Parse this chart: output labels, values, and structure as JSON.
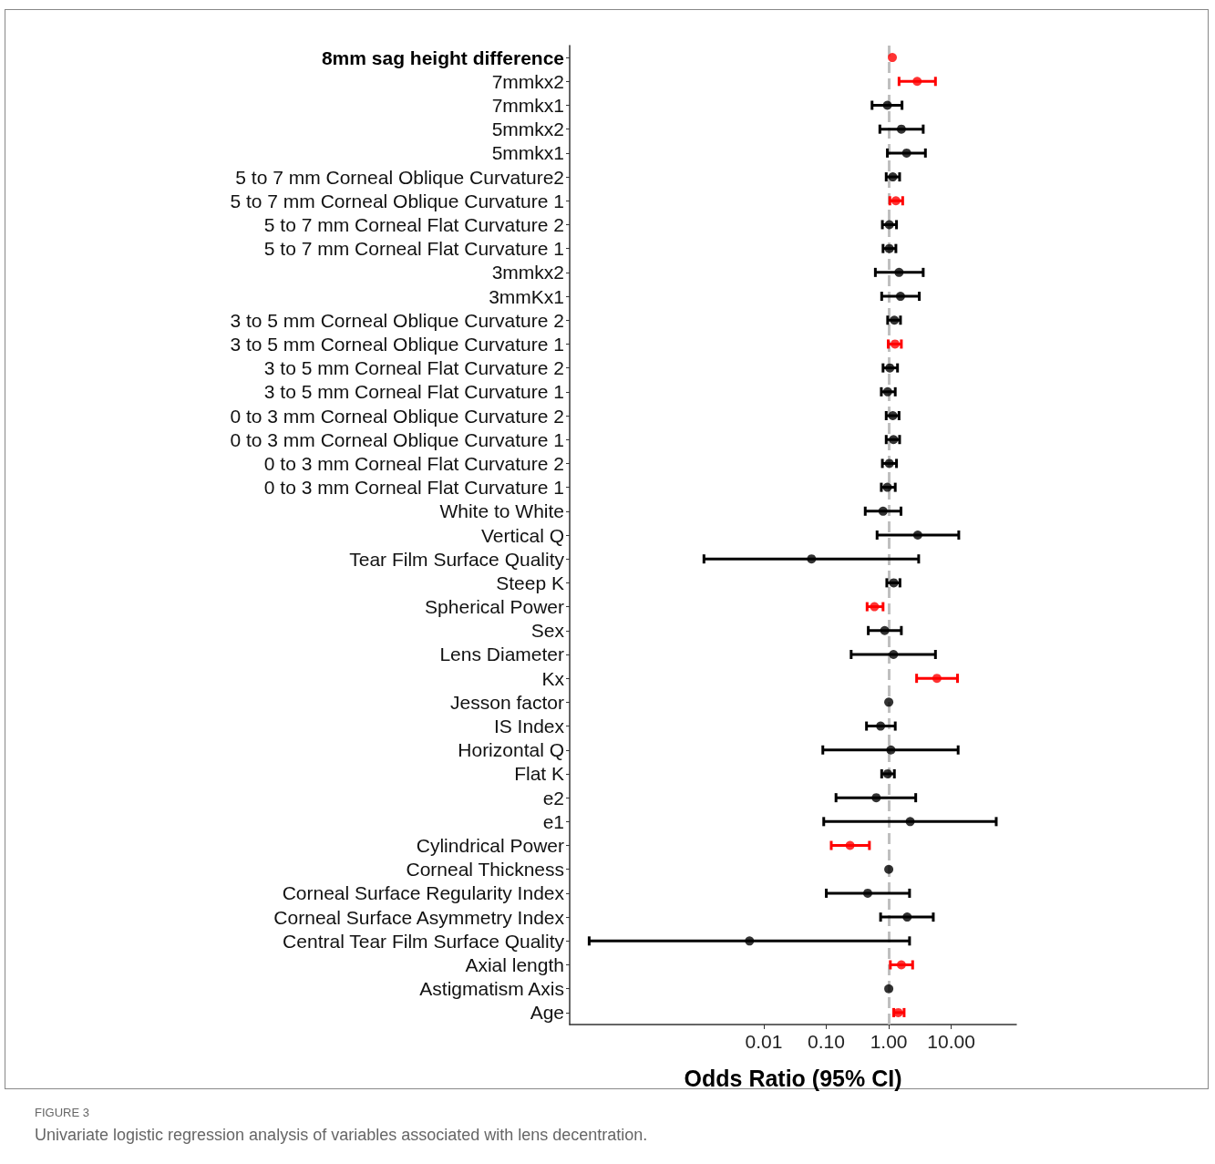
{
  "chart_data": {
    "type": "scatter",
    "orientation": "horizontal",
    "xlabel": "Odds Ratio (95% CI)",
    "categories": [
      "8mm sag height difference",
      "7mmkx2",
      "7mmkx1",
      "5mmkx2",
      "5mmkx1",
      "5 to 7 mm Corneal Oblique Curvature2",
      "5 to 7 mm Corneal Oblique Curvature 1",
      "5 to 7 mm Corneal Flat Curvature 2",
      "5 to 7 mm Corneal Flat Curvature 1",
      "3mmkx2",
      "3mmKx1",
      "3 to 5 mm Corneal Oblique Curvature 2",
      "3 to 5 mm Corneal Oblique Curvature 1",
      "3 to 5 mm Corneal Flat Curvature 2",
      "3 to 5 mm Corneal Flat Curvature 1",
      "0 to 3 mm Corneal Oblique Curvature 2",
      "0 to 3 mm Corneal Oblique Curvature 1",
      "0 to 3 mm Corneal Flat Curvature 2",
      "0 to 3 mm Corneal Flat Curvature 1",
      "White to White",
      "Vertical Q",
      "Tear Film Surface Quality",
      "Steep K",
      "Spherical Power",
      "Sex",
      "Lens Diameter",
      "Kx",
      "Jesson factor",
      "IS Index",
      "Horizontal Q",
      "Flat K",
      "e2",
      "e1",
      "Cylindrical Power",
      "Corneal Thickness",
      "Corneal Surface Regularity Index",
      "Corneal Surface Asymmetry Index",
      "Central Tear Film Surface Quality",
      "Axial length",
      "Astigmatism Axis",
      "Age"
    ],
    "values": [
      1.14,
      2.85,
      0.95,
      1.59,
      1.93,
      1.16,
      1.3,
      1.02,
      1.02,
      1.46,
      1.54,
      1.23,
      1.26,
      1.04,
      0.96,
      1.16,
      1.19,
      1.02,
      0.95,
      0.81,
      2.91,
      0.058,
      1.2,
      0.59,
      0.86,
      1.19,
      5.9,
      1.0,
      0.74,
      1.08,
      0.96,
      0.63,
      2.2,
      0.24,
      1.0,
      0.46,
      1.97,
      0.0059,
      1.59,
      1.0,
      1.42
    ],
    "errors": [
      null,
      [
        1.46,
        5.59
      ],
      [
        0.54,
        1.63
      ],
      [
        0.72,
        3.56
      ],
      [
        0.95,
        3.86
      ],
      [
        0.91,
        1.49
      ],
      [
        1.04,
        1.67
      ],
      [
        0.79,
        1.33
      ],
      [
        0.81,
        1.3
      ],
      [
        0.61,
        3.56
      ],
      [
        0.77,
        3.08
      ],
      [
        0.96,
        1.54
      ],
      [
        0.98,
        1.59
      ],
      [
        0.81,
        1.38
      ],
      [
        0.76,
        1.27
      ],
      [
        0.91,
        1.46
      ],
      [
        0.91,
        1.49
      ],
      [
        0.79,
        1.33
      ],
      [
        0.76,
        1.27
      ],
      [
        0.42,
        1.57
      ],
      [
        0.65,
        13.2
      ],
      [
        0.0011,
        3.01
      ],
      [
        0.93,
        1.51
      ],
      [
        0.45,
        0.81
      ],
      [
        0.47,
        1.59
      ],
      [
        0.25,
        5.59
      ],
      [
        2.79,
        12.6
      ],
      null,
      [
        0.44,
        1.27
      ],
      [
        0.088,
        12.9
      ],
      [
        0.77,
        1.23
      ],
      [
        0.143,
        2.7
      ],
      [
        0.091,
        52.5
      ],
      [
        0.12,
        0.49
      ],
      null,
      [
        0.1,
        2.15
      ],
      [
        0.74,
        5.16
      ],
      [
        1.6e-05,
        2.15
      ],
      [
        1.06,
        2.41
      ],
      null,
      [
        1.2,
        1.76
      ]
    ],
    "colors": [
      "#ff0000",
      "#ff0000",
      "#000000",
      "#000000",
      "#000000",
      "#000000",
      "#ff0000",
      "#000000",
      "#000000",
      "#000000",
      "#000000",
      "#000000",
      "#ff0000",
      "#000000",
      "#000000",
      "#000000",
      "#000000",
      "#000000",
      "#000000",
      "#000000",
      "#000000",
      "#000000",
      "#000000",
      "#ff0000",
      "#000000",
      "#000000",
      "#ff0000",
      "#000000",
      "#000000",
      "#000000",
      "#000000",
      "#000000",
      "#000000",
      "#ff0000",
      "#000000",
      "#000000",
      "#000000",
      "#000000",
      "#ff0000",
      "#000000",
      "#ff0000"
    ],
    "log": "x",
    "xlim": [
      7.8e-06,
      110
    ],
    "xticks": [
      0.01,
      {
        "value": 0.1,
        "label": "0.10"
      },
      {
        "value": 1,
        "label": "1.00"
      },
      {
        "value": 10,
        "label": "10.00"
      }
    ],
    "ref_lines": [
      {
        "axis": "x",
        "value": 1,
        "label": null,
        "color": "#bfbfbf",
        "line_style": "dashed"
      }
    ],
    "grid": false,
    "marker": "circle",
    "annotations": [
      "FIGURE 3",
      "Univariate logistic regression analysis of variables associated with lens decentration."
    ]
  }
}
